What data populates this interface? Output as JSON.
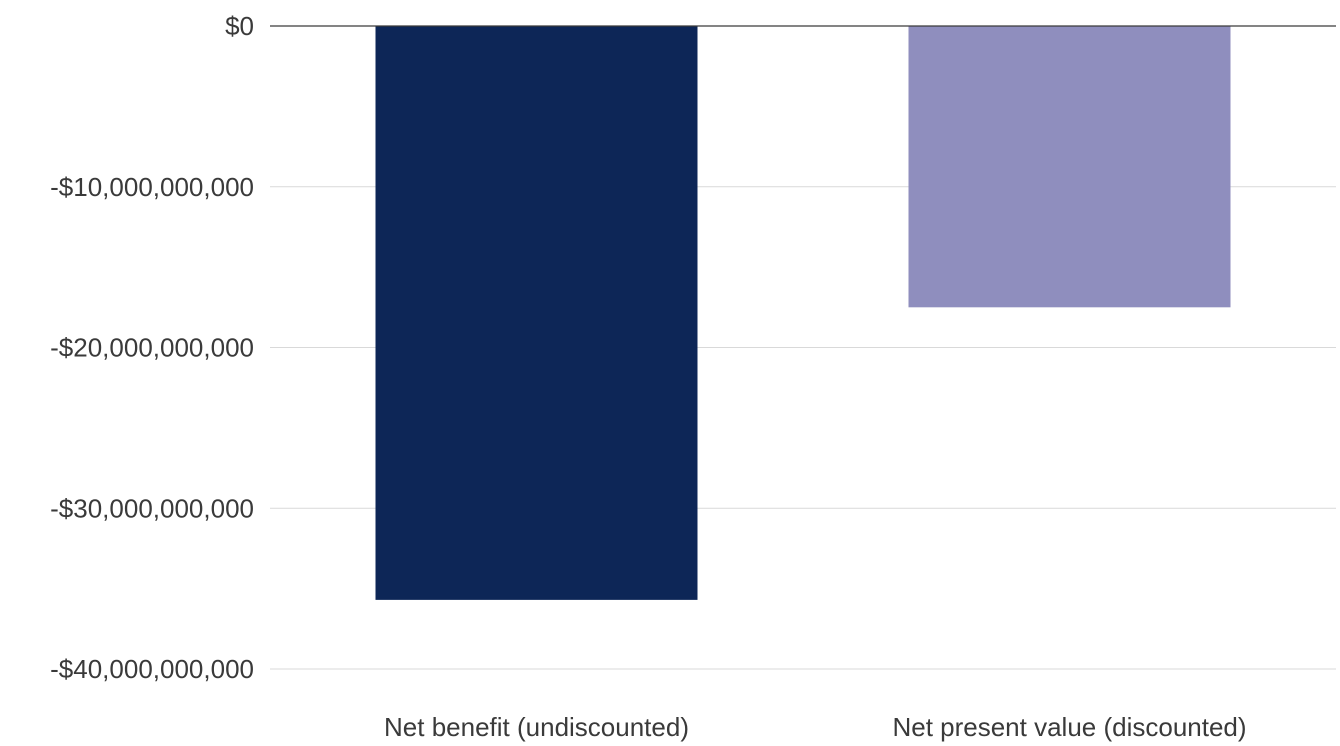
{
  "chart_data": {
    "type": "bar",
    "categories": [
      "Net benefit (undiscounted)",
      "Net present value (discounted)"
    ],
    "values": [
      -35700000000,
      -17500000000
    ],
    "colors": [
      "#0d2657",
      "#8f8ebe"
    ],
    "ylim": [
      -40000000000,
      0
    ],
    "y_ticks": [
      0,
      -10000000000,
      -20000000000,
      -30000000000,
      -40000000000
    ],
    "y_tick_labels": [
      "$0",
      "-$10,000,000,000",
      "-$20,000,000,000",
      "-$30,000,000,000",
      "-$40,000,000,000"
    ],
    "grid": true,
    "gridline_color": "#d9d9d9",
    "zero_line_color": "#3a3a3a",
    "legend": "none"
  }
}
